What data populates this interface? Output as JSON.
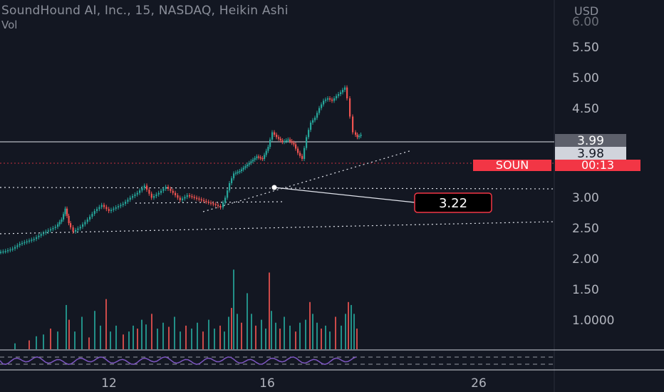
{
  "header": {
    "title": "SoundHound AI, Inc., 15, NASDAQ, Heikin Ashi",
    "indicator": "Vol",
    "currency": "USD"
  },
  "price_axis": {
    "ticks": [
      "5.50",
      "5.00",
      "4.50",
      "3.00",
      "2.50",
      "2.00",
      "1.50",
      "1.0000"
    ],
    "cut_tick": "6.00"
  },
  "price_badges": {
    "high_value": "3.99",
    "last_value": "3.98",
    "symbol": "SOUN",
    "countdown": "00:13"
  },
  "annotation": {
    "label": "3.22"
  },
  "time_axis": {
    "ticks": [
      "12",
      "16",
      "26"
    ]
  },
  "colors": {
    "background": "#131722",
    "up": "#26a69a",
    "down": "#ef5350",
    "accent_red": "#f23645",
    "grid_line": "#e0e3eb",
    "axis_text": "#b2b5be",
    "badge_grey": "#5d606b",
    "badge_light": "#d1d4dc",
    "rsi_line": "#7e57c2"
  },
  "chart_data": {
    "type": "candlestick",
    "title": "SoundHound AI, Inc., 15, NASDAQ, Heikin Ashi",
    "price_range": [
      2.4,
      6.0
    ],
    "price_series": [
      {
        "t": 0,
        "p": 2.63
      },
      {
        "t": 10,
        "p": 2.64
      },
      {
        "t": 20,
        "p": 2.66
      },
      {
        "t": 30,
        "p": 2.7
      },
      {
        "t": 40,
        "p": 2.72
      },
      {
        "t": 50,
        "p": 2.74
      },
      {
        "t": 60,
        "p": 2.78
      },
      {
        "t": 70,
        "p": 2.81
      },
      {
        "t": 80,
        "p": 2.84
      },
      {
        "t": 88,
        "p": 2.9
      },
      {
        "t": 93,
        "p": 2.99
      },
      {
        "t": 98,
        "p": 2.87
      },
      {
        "t": 105,
        "p": 2.8
      },
      {
        "t": 115,
        "p": 2.84
      },
      {
        "t": 125,
        "p": 2.9
      },
      {
        "t": 135,
        "p": 2.97
      },
      {
        "t": 145,
        "p": 3.02
      },
      {
        "t": 155,
        "p": 2.97
      },
      {
        "t": 165,
        "p": 3.0
      },
      {
        "t": 175,
        "p": 3.03
      },
      {
        "t": 185,
        "p": 3.08
      },
      {
        "t": 195,
        "p": 3.12
      },
      {
        "t": 205,
        "p": 3.18
      },
      {
        "t": 215,
        "p": 3.08
      },
      {
        "t": 225,
        "p": 3.12
      },
      {
        "t": 235,
        "p": 3.17
      },
      {
        "t": 245,
        "p": 3.12
      },
      {
        "t": 255,
        "p": 3.06
      },
      {
        "t": 265,
        "p": 3.1
      },
      {
        "t": 275,
        "p": 3.08
      },
      {
        "t": 285,
        "p": 3.06
      },
      {
        "t": 295,
        "p": 3.04
      },
      {
        "t": 305,
        "p": 3.02
      },
      {
        "t": 312,
        "p": 3.0
      },
      {
        "t": 318,
        "p": 3.08
      },
      {
        "t": 324,
        "p": 3.2
      },
      {
        "t": 330,
        "p": 3.28
      },
      {
        "t": 338,
        "p": 3.3
      },
      {
        "t": 346,
        "p": 3.34
      },
      {
        "t": 354,
        "p": 3.38
      },
      {
        "t": 362,
        "p": 3.42
      },
      {
        "t": 370,
        "p": 3.4
      },
      {
        "t": 378,
        "p": 3.5
      },
      {
        "t": 384,
        "p": 3.62
      },
      {
        "t": 390,
        "p": 3.58
      },
      {
        "t": 398,
        "p": 3.54
      },
      {
        "t": 406,
        "p": 3.56
      },
      {
        "t": 414,
        "p": 3.52
      },
      {
        "t": 420,
        "p": 3.45
      },
      {
        "t": 426,
        "p": 3.4
      },
      {
        "t": 432,
        "p": 3.58
      },
      {
        "t": 438,
        "p": 3.7
      },
      {
        "t": 444,
        "p": 3.74
      },
      {
        "t": 450,
        "p": 3.82
      },
      {
        "t": 456,
        "p": 3.88
      },
      {
        "t": 462,
        "p": 3.9
      },
      {
        "t": 468,
        "p": 3.88
      },
      {
        "t": 474,
        "p": 3.92
      },
      {
        "t": 480,
        "p": 3.95
      },
      {
        "t": 486,
        "p": 3.99
      },
      {
        "t": 490,
        "p": 3.9
      },
      {
        "t": 494,
        "p": 3.75
      },
      {
        "t": 498,
        "p": 3.62
      },
      {
        "t": 503,
        "p": 3.58
      },
      {
        "t": 508,
        "p": 3.6
      }
    ],
    "volume_series": [
      {
        "t": 20,
        "v": 0.1
      },
      {
        "t": 40,
        "v": 0.15
      },
      {
        "t": 50,
        "v": 0.22
      },
      {
        "t": 60,
        "v": 0.25
      },
      {
        "t": 70,
        "v": 0.35
      },
      {
        "t": 80,
        "v": 0.3
      },
      {
        "t": 92,
        "v": 0.75
      },
      {
        "t": 96,
        "v": 0.5
      },
      {
        "t": 104,
        "v": 0.3
      },
      {
        "t": 114,
        "v": 0.55
      },
      {
        "t": 124,
        "v": 0.2
      },
      {
        "t": 132,
        "v": 0.65
      },
      {
        "t": 140,
        "v": 0.4
      },
      {
        "t": 148,
        "v": 0.85
      },
      {
        "t": 154,
        "v": 0.3
      },
      {
        "t": 162,
        "v": 0.4
      },
      {
        "t": 172,
        "v": 0.25
      },
      {
        "t": 180,
        "v": 0.3
      },
      {
        "t": 186,
        "v": 0.4
      },
      {
        "t": 192,
        "v": 0.35
      },
      {
        "t": 198,
        "v": 0.5
      },
      {
        "t": 204,
        "v": 0.42
      },
      {
        "t": 212,
        "v": 0.6
      },
      {
        "t": 220,
        "v": 0.35
      },
      {
        "t": 228,
        "v": 0.45
      },
      {
        "t": 236,
        "v": 0.38
      },
      {
        "t": 244,
        "v": 0.55
      },
      {
        "t": 252,
        "v": 0.3
      },
      {
        "t": 260,
        "v": 0.4
      },
      {
        "t": 268,
        "v": 0.35
      },
      {
        "t": 276,
        "v": 0.45
      },
      {
        "t": 284,
        "v": 0.3
      },
      {
        "t": 292,
        "v": 0.5
      },
      {
        "t": 300,
        "v": 0.35
      },
      {
        "t": 308,
        "v": 0.4
      },
      {
        "t": 314,
        "v": 0.3
      },
      {
        "t": 320,
        "v": 0.55
      },
      {
        "t": 324,
        "v": 0.7
      },
      {
        "t": 327,
        "v": 1.35
      },
      {
        "t": 332,
        "v": 0.6
      },
      {
        "t": 338,
        "v": 0.45
      },
      {
        "t": 346,
        "v": 0.95
      },
      {
        "t": 352,
        "v": 0.6
      },
      {
        "t": 358,
        "v": 0.4
      },
      {
        "t": 366,
        "v": 0.5
      },
      {
        "t": 372,
        "v": 0.35
      },
      {
        "t": 377,
        "v": 1.3
      },
      {
        "t": 380,
        "v": 0.65
      },
      {
        "t": 386,
        "v": 0.45
      },
      {
        "t": 392,
        "v": 0.35
      },
      {
        "t": 398,
        "v": 0.55
      },
      {
        "t": 406,
        "v": 0.4
      },
      {
        "t": 414,
        "v": 0.3
      },
      {
        "t": 420,
        "v": 0.45
      },
      {
        "t": 428,
        "v": 0.5
      },
      {
        "t": 434,
        "v": 0.8
      },
      {
        "t": 438,
        "v": 0.6
      },
      {
        "t": 444,
        "v": 0.45
      },
      {
        "t": 450,
        "v": 0.35
      },
      {
        "t": 456,
        "v": 0.4
      },
      {
        "t": 462,
        "v": 0.3
      },
      {
        "t": 470,
        "v": 0.55
      },
      {
        "t": 478,
        "v": 0.4
      },
      {
        "t": 484,
        "v": 0.6
      },
      {
        "t": 488,
        "v": 0.8
      },
      {
        "t": 492,
        "v": 0.75
      },
      {
        "t": 496,
        "v": 0.6
      },
      {
        "t": 500,
        "v": 0.35
      }
    ],
    "volume_range": [
      0,
      1.45
    ],
    "horizontal_levels": [
      {
        "price": 3.99,
        "style": "solid"
      },
      {
        "price": 3.22,
        "style": "dotted"
      },
      {
        "price": 3.63,
        "style": "dotted-red"
      }
    ]
  }
}
